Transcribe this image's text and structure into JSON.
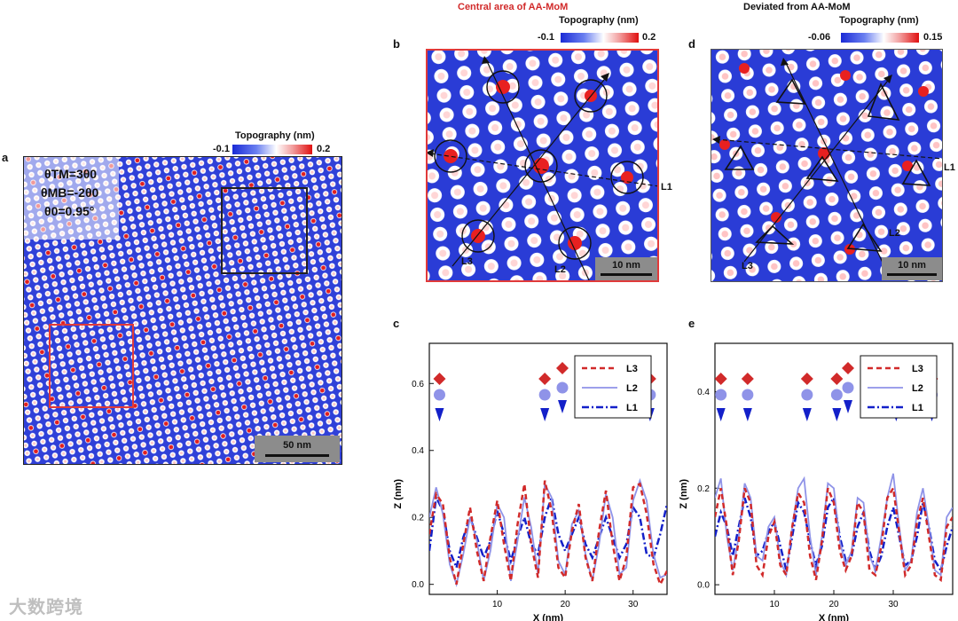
{
  "panels": {
    "a": {
      "letter": "a",
      "cbar_title": "Topography (nm)",
      "cbar_min": "-0.1",
      "cbar_max": "0.2",
      "theta_tm": "θTM=3θ0",
      "theta_mb": "θMB=-2θ0",
      "theta0": "θ0=0.95°",
      "scale": "50 nm"
    },
    "b": {
      "letter": "b",
      "header": "Central area of AA-MoM",
      "cbar_title": "Topography (nm)",
      "cbar_min": "-0.1",
      "cbar_max": "0.2",
      "scale": "10 nm",
      "L1": "L1",
      "L2": "L2",
      "L3": "L3"
    },
    "c": {
      "letter": "c"
    },
    "d": {
      "letter": "d",
      "header": "Deviated from AA-MoM",
      "cbar_title": "Topography (nm)",
      "cbar_min": "-0.06",
      "cbar_max": "0.15",
      "scale": "10 nm",
      "L1": "L1",
      "L2": "L2",
      "L3": "L3"
    },
    "e": {
      "letter": "e"
    }
  },
  "colors": {
    "red": "#d12a2a",
    "blue_dark": "#1320c9",
    "blue_light": "#8f93e8",
    "frame_red": "#e03a3a"
  },
  "chart_data": [
    {
      "id": "c",
      "type": "line",
      "xlabel": "X (nm)",
      "ylabel": "Z (nm)",
      "xlim": [
        0,
        35
      ],
      "ylim": [
        -0.03,
        0.72
      ],
      "xticks": [
        10,
        20,
        30
      ],
      "yticks": [
        0.0,
        0.2,
        0.4,
        0.6
      ],
      "xtick_labels": [
        "10",
        "20",
        "30"
      ],
      "ytick_labels": [
        "0.0",
        "0.2",
        "0.4",
        "0.6"
      ],
      "legend": [
        "L3",
        "L2",
        "L1"
      ],
      "marker_x": [
        1.5,
        17,
        32.5
      ],
      "series": [
        {
          "name": "L3",
          "style": "dashed",
          "color": "#d12a2a",
          "x": [
            0,
            1,
            2,
            3,
            4,
            5,
            6,
            7,
            8,
            9,
            10,
            11,
            12,
            13,
            14,
            15,
            16,
            17,
            18,
            19,
            20,
            21,
            22,
            23,
            24,
            25,
            26,
            27,
            28,
            29,
            30,
            31,
            32,
            33,
            34,
            35
          ],
          "y": [
            0.15,
            0.27,
            0.24,
            0.08,
            0.0,
            0.12,
            0.23,
            0.1,
            0.01,
            0.14,
            0.25,
            0.12,
            0.01,
            0.18,
            0.3,
            0.12,
            0.02,
            0.31,
            0.22,
            0.05,
            0.02,
            0.16,
            0.24,
            0.08,
            0.01,
            0.16,
            0.28,
            0.12,
            0.01,
            0.08,
            0.29,
            0.3,
            0.21,
            0.06,
            0.0,
            0.04
          ]
        },
        {
          "name": "L2",
          "style": "solid",
          "color": "#8f93e8",
          "x": [
            0,
            1,
            2,
            3,
            4,
            5,
            6,
            7,
            8,
            9,
            10,
            11,
            12,
            13,
            14,
            15,
            16,
            17,
            18,
            19,
            20,
            21,
            22,
            23,
            24,
            25,
            26,
            27,
            28,
            29,
            30,
            31,
            32,
            33,
            34,
            35
          ],
          "y": [
            0.2,
            0.29,
            0.21,
            0.06,
            0.0,
            0.09,
            0.2,
            0.13,
            0.01,
            0.1,
            0.24,
            0.2,
            0.01,
            0.13,
            0.26,
            0.17,
            0.03,
            0.3,
            0.26,
            0.07,
            0.03,
            0.18,
            0.22,
            0.09,
            0.01,
            0.12,
            0.27,
            0.2,
            0.03,
            0.05,
            0.25,
            0.31,
            0.25,
            0.09,
            0.02,
            0.03
          ]
        },
        {
          "name": "L1",
          "style": "dashdot",
          "color": "#1320c9",
          "x": [
            0,
            1,
            2,
            3,
            4,
            5,
            6,
            7,
            8,
            9,
            10,
            11,
            12,
            13,
            14,
            15,
            16,
            17,
            18,
            19,
            20,
            21,
            22,
            23,
            24,
            25,
            26,
            27,
            28,
            29,
            30,
            31,
            32,
            33,
            34,
            35
          ],
          "y": [
            0.1,
            0.26,
            0.22,
            0.1,
            0.05,
            0.14,
            0.2,
            0.14,
            0.08,
            0.13,
            0.22,
            0.15,
            0.07,
            0.14,
            0.2,
            0.12,
            0.09,
            0.2,
            0.26,
            0.15,
            0.1,
            0.15,
            0.2,
            0.12,
            0.08,
            0.14,
            0.2,
            0.14,
            0.08,
            0.12,
            0.23,
            0.2,
            0.09,
            0.08,
            0.15,
            0.24
          ]
        }
      ]
    },
    {
      "id": "e",
      "type": "line",
      "xlabel": "X (nm)",
      "ylabel": "Z (nm)",
      "xlim": [
        0,
        40
      ],
      "ylim": [
        -0.02,
        0.5
      ],
      "xticks": [
        10,
        20,
        30
      ],
      "yticks": [
        0.0,
        0.2,
        0.4
      ],
      "xtick_labels": [
        "10",
        "20",
        "30"
      ],
      "ytick_labels": [
        "0.0",
        "0.2",
        "0.4"
      ],
      "legend": [
        "L3",
        "L2",
        "L1"
      ],
      "marker_x": [
        1,
        5.5,
        15.5,
        20.5,
        30.5,
        36.5
      ],
      "series": [
        {
          "name": "L3",
          "style": "dashed",
          "color": "#d12a2a",
          "x": [
            0,
            1,
            2,
            3,
            4,
            5,
            6,
            7,
            8,
            9,
            10,
            11,
            12,
            13,
            14,
            15,
            16,
            17,
            18,
            19,
            20,
            21,
            22,
            23,
            24,
            25,
            26,
            27,
            28,
            29,
            30,
            31,
            32,
            33,
            34,
            35,
            36,
            37,
            38,
            39,
            40
          ],
          "y": [
            0.14,
            0.2,
            0.12,
            0.02,
            0.09,
            0.2,
            0.17,
            0.04,
            0.02,
            0.1,
            0.13,
            0.04,
            0.02,
            0.12,
            0.19,
            0.17,
            0.06,
            0.01,
            0.09,
            0.2,
            0.17,
            0.07,
            0.03,
            0.06,
            0.17,
            0.15,
            0.03,
            0.02,
            0.08,
            0.18,
            0.2,
            0.11,
            0.02,
            0.04,
            0.13,
            0.18,
            0.1,
            0.02,
            0.01,
            0.12,
            0.14
          ]
        },
        {
          "name": "L2",
          "style": "solid",
          "color": "#8f93e8",
          "x": [
            0,
            1,
            2,
            3,
            4,
            5,
            6,
            7,
            8,
            9,
            10,
            11,
            12,
            13,
            14,
            15,
            16,
            17,
            18,
            19,
            20,
            21,
            22,
            23,
            24,
            25,
            26,
            27,
            28,
            29,
            30,
            31,
            32,
            33,
            34,
            35,
            36,
            37,
            38,
            39,
            40
          ],
          "y": [
            0.18,
            0.22,
            0.1,
            0.03,
            0.1,
            0.21,
            0.18,
            0.06,
            0.05,
            0.12,
            0.14,
            0.05,
            0.02,
            0.12,
            0.2,
            0.22,
            0.1,
            0.02,
            0.1,
            0.21,
            0.2,
            0.09,
            0.04,
            0.07,
            0.18,
            0.17,
            0.06,
            0.03,
            0.1,
            0.18,
            0.23,
            0.12,
            0.03,
            0.05,
            0.15,
            0.2,
            0.12,
            0.03,
            0.02,
            0.14,
            0.16
          ]
        },
        {
          "name": "L1",
          "style": "dashdot",
          "color": "#1320c9",
          "x": [
            0,
            1,
            2,
            3,
            4,
            5,
            6,
            7,
            8,
            9,
            10,
            11,
            12,
            13,
            14,
            15,
            16,
            17,
            18,
            19,
            20,
            21,
            22,
            23,
            24,
            25,
            26,
            27,
            28,
            29,
            30,
            31,
            32,
            33,
            34,
            35,
            36,
            37,
            38,
            39,
            40
          ],
          "y": [
            0.1,
            0.15,
            0.12,
            0.06,
            0.12,
            0.18,
            0.14,
            0.06,
            0.07,
            0.11,
            0.13,
            0.08,
            0.03,
            0.1,
            0.17,
            0.15,
            0.09,
            0.04,
            0.08,
            0.16,
            0.18,
            0.1,
            0.05,
            0.06,
            0.12,
            0.15,
            0.07,
            0.03,
            0.06,
            0.12,
            0.16,
            0.1,
            0.04,
            0.05,
            0.1,
            0.17,
            0.12,
            0.05,
            0.03,
            0.08,
            0.12
          ]
        }
      ]
    }
  ],
  "watermark": "大数跨境"
}
